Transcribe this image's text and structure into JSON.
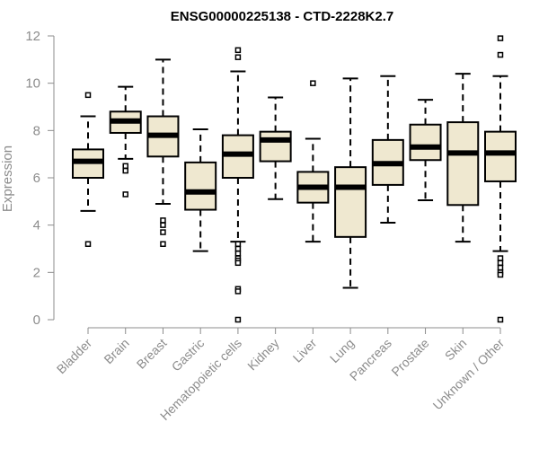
{
  "chart_data": {
    "type": "box",
    "title": "ENSG00000225138 - CTD-2228K2.7",
    "xlabel": "",
    "ylabel": "Expression",
    "ylim": [
      0,
      12
    ],
    "yticks": [
      0,
      2,
      4,
      6,
      8,
      10,
      12
    ],
    "box_fill": "#efe8d0",
    "categories": [
      "Bladder",
      "Brain",
      "Breast",
      "Gastric",
      "Hematopoietic cells",
      "Kidney",
      "Liver",
      "Lung",
      "Pancreas",
      "Prostate",
      "Skin",
      "Unknown / Other"
    ],
    "boxes": [
      {
        "name": "Bladder",
        "whisker_low": 4.6,
        "q1": 6.0,
        "median": 6.7,
        "q3": 7.2,
        "whisker_high": 8.6,
        "outliers": [
          9.5,
          3.2
        ]
      },
      {
        "name": "Brain",
        "whisker_low": 6.8,
        "q1": 7.9,
        "median": 8.4,
        "q3": 8.8,
        "whisker_high": 9.85,
        "outliers": [
          6.5,
          6.3,
          5.3
        ]
      },
      {
        "name": "Breast",
        "whisker_low": 4.9,
        "q1": 6.9,
        "median": 7.8,
        "q3": 8.6,
        "whisker_high": 11.0,
        "outliers": [
          4.2,
          4.0,
          3.7,
          3.2
        ]
      },
      {
        "name": "Gastric",
        "whisker_low": 2.9,
        "q1": 4.65,
        "median": 5.4,
        "q3": 6.65,
        "whisker_high": 8.05,
        "outliers": []
      },
      {
        "name": "Hematopoietic cells",
        "whisker_low": 3.3,
        "q1": 6.0,
        "median": 7.0,
        "q3": 7.8,
        "whisker_high": 10.5,
        "outliers": [
          11.4,
          11.1,
          3.2,
          3.0,
          2.8,
          2.6,
          2.5,
          2.4,
          1.3,
          1.2,
          0.0
        ]
      },
      {
        "name": "Kidney",
        "whisker_low": 5.1,
        "q1": 6.7,
        "median": 7.6,
        "q3": 7.95,
        "whisker_high": 9.4,
        "outliers": []
      },
      {
        "name": "Liver",
        "whisker_low": 3.3,
        "q1": 4.95,
        "median": 5.6,
        "q3": 6.25,
        "whisker_high": 7.65,
        "outliers": [
          10.0
        ]
      },
      {
        "name": "Lung",
        "whisker_low": 1.35,
        "q1": 3.5,
        "median": 5.6,
        "q3": 6.45,
        "whisker_high": 10.2,
        "outliers": []
      },
      {
        "name": "Pancreas",
        "whisker_low": 4.1,
        "q1": 5.7,
        "median": 6.6,
        "q3": 7.6,
        "whisker_high": 10.3,
        "outliers": []
      },
      {
        "name": "Prostate",
        "whisker_low": 5.05,
        "q1": 6.75,
        "median": 7.3,
        "q3": 8.25,
        "whisker_high": 9.3,
        "outliers": []
      },
      {
        "name": "Skin",
        "whisker_low": 3.3,
        "q1": 4.85,
        "median": 7.05,
        "q3": 8.35,
        "whisker_high": 10.4,
        "outliers": []
      },
      {
        "name": "Unknown / Other",
        "whisker_low": 2.9,
        "q1": 5.85,
        "median": 7.05,
        "q3": 7.95,
        "whisker_high": 10.3,
        "outliers": [
          11.9,
          11.2,
          2.6,
          2.4,
          2.2,
          2.0,
          1.9,
          0.0
        ]
      }
    ]
  }
}
